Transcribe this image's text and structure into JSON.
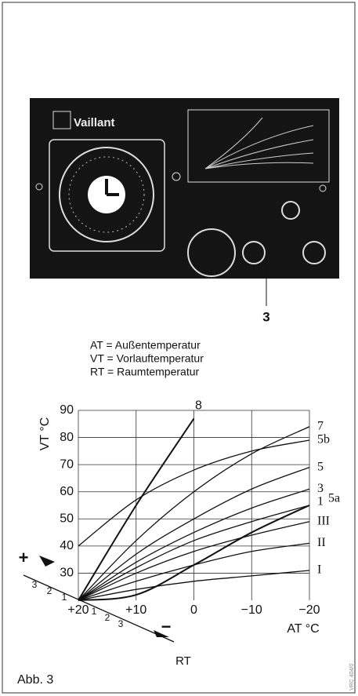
{
  "figure": {
    "brand": "Vaillant",
    "callout": "3"
  },
  "legend": [
    "AT = Außentemperatur",
    "VT = Vorlauftemperatur",
    "RT = Raumtemperatur"
  ],
  "chart_data": {
    "type": "line",
    "y_label": "VT °C",
    "x_label": "AT °C",
    "x": [
      20,
      10,
      0,
      -10,
      -20
    ],
    "xlim": [
      20,
      -20
    ],
    "xticks": [
      {
        "value": 20,
        "label": "+20"
      },
      {
        "value": 10,
        "label": "+10"
      },
      0,
      {
        "value": -10,
        "label": "−10"
      },
      {
        "value": -20,
        "label": "−20"
      }
    ],
    "ylim": [
      20,
      90
    ],
    "yticks": [
      30,
      40,
      50,
      60,
      70,
      80,
      90
    ],
    "grid": true,
    "series": [
      {
        "name": "8",
        "color": "#111",
        "values": [
          20,
          55,
          87,
          null,
          null
        ]
      },
      {
        "name": "7",
        "color": "#111",
        "values": [
          20,
          42,
          60,
          74,
          84
        ]
      },
      {
        "name": "5b",
        "color": "#111",
        "values": [
          40,
          57,
          68,
          75,
          79
        ]
      },
      {
        "name": "5",
        "color": "#111",
        "values": [
          20,
          37,
          50,
          61,
          69
        ]
      },
      {
        "name": "3",
        "color": "#111",
        "values": [
          20,
          34,
          45,
          54,
          61
        ]
      },
      {
        "name": "1",
        "color": "#111",
        "values": [
          20,
          32,
          42,
          49,
          55
        ]
      },
      {
        "name": "5a",
        "color": "#111",
        "values": [
          20,
          22,
          33,
          45,
          55
        ]
      },
      {
        "name": "III",
        "color": "#111",
        "values": [
          20,
          30,
          38,
          44,
          49
        ]
      },
      {
        "name": "II",
        "color": "#111",
        "values": [
          20,
          27,
          33,
          38,
          41
        ]
      },
      {
        "name": "I",
        "color": "#111",
        "values": [
          20,
          24,
          27,
          29,
          31
        ]
      }
    ],
    "rt_label": "RT",
    "rt_plus": "+",
    "rt_minus": "−",
    "rt_ticks_plus": [
      3,
      2,
      1
    ],
    "rt_ticks_minus": [
      1,
      2,
      3
    ]
  },
  "caption": "Abb. 3",
  "code": "VRC 404/0"
}
